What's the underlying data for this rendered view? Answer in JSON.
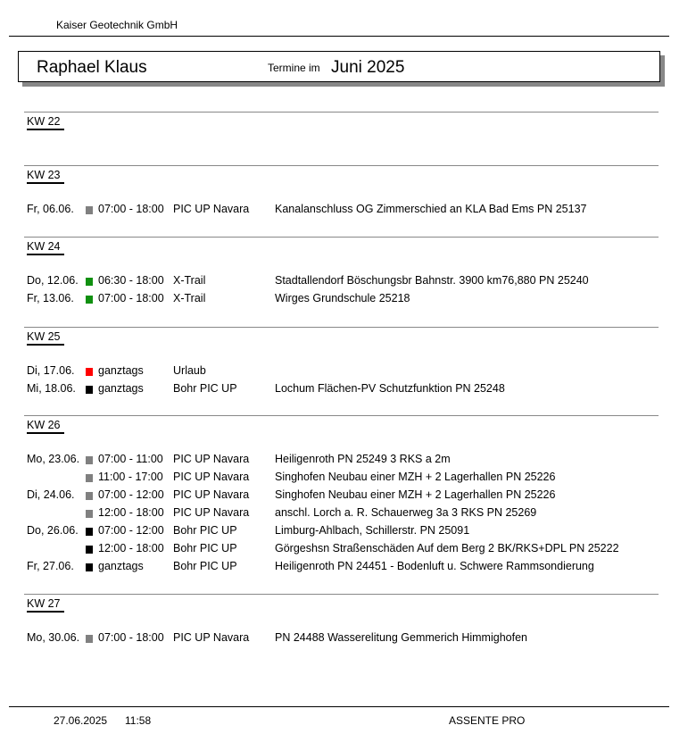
{
  "header": {
    "company": "Kaiser Geotechnik GmbH",
    "name": "Raphael Klaus",
    "termine_label": "Termine im",
    "month": "Juni 2025"
  },
  "colors": {
    "gray": "#808080",
    "green": "#109010",
    "red": "#ff0000",
    "black": "#000000"
  },
  "weeks": [
    {
      "label": "KW 22",
      "rows": []
    },
    {
      "label": "KW 23",
      "rows": [
        {
          "day": "Fr,  06.06.",
          "color": "gray",
          "time": "07:00 - 18:00",
          "vehicle": "PIC UP Navara",
          "desc": "Kanalanschluss OG Zimmerschied an KLA Bad Ems PN 25137"
        }
      ]
    },
    {
      "label": "KW 24",
      "rows": [
        {
          "day": "Do, 12.06.",
          "color": "green",
          "time": "06:30 - 18:00",
          "vehicle": "X-Trail",
          "desc": "Stadtallendorf Böschungsbr Bahnstr. 3900 km76,880 PN 25240"
        },
        {
          "day": "Fr,  13.06.",
          "color": "green",
          "time": "07:00 - 18:00",
          "vehicle": "X-Trail",
          "desc": "Wirges  Grundschule 25218"
        }
      ]
    },
    {
      "label": "KW 25",
      "rows": [
        {
          "day": "Di,  17.06.",
          "color": "red",
          "time": "ganztags",
          "vehicle": "Urlaub",
          "desc": ""
        },
        {
          "day": "Mi,  18.06.",
          "color": "black",
          "time": "ganztags",
          "vehicle": "Bohr PIC UP",
          "desc": "Lochum Flächen-PV Schutzfunktion PN 25248"
        }
      ]
    },
    {
      "label": "KW 26",
      "rows": [
        {
          "day": "Mo, 23.06.",
          "color": "gray",
          "time": "07:00 - 11:00",
          "vehicle": "PIC UP Navara",
          "desc": "Heiligenroth PN 25249 3 RKS a 2m"
        },
        {
          "day": "",
          "color": "gray",
          "time": "11:00 - 17:00",
          "vehicle": "PIC UP Navara",
          "desc": "Singhofen Neubau einer MZH + 2 Lagerhallen  PN 25226"
        },
        {
          "day": "Di,  24.06.",
          "color": "gray",
          "time": "07:00 - 12:00",
          "vehicle": "PIC UP Navara",
          "desc": "Singhofen Neubau einer MZH + 2 Lagerhallen  PN 25226"
        },
        {
          "day": "",
          "color": "gray",
          "time": "12:00 - 18:00",
          "vehicle": "PIC UP Navara",
          "desc": "anschl. Lorch a. R. Schauerweg 3a 3 RKS PN 25269"
        },
        {
          "day": "Do, 26.06.",
          "color": "black",
          "time": "07:00 - 12:00",
          "vehicle": "Bohr PIC UP",
          "desc": "Limburg-Ahlbach, Schillerstr. PN 25091"
        },
        {
          "day": "",
          "color": "black",
          "time": "12:00 - 18:00",
          "vehicle": "Bohr PIC UP",
          "desc": "Görgeshsn Straßenschäden Auf dem Berg 2 BK/RKS+DPL PN 25222"
        },
        {
          "day": "Fr,  27.06.",
          "color": "black",
          "time": "ganztags",
          "vehicle": "Bohr PIC UP",
          "desc": "Heiligenroth PN 24451 - Bodenluft u. Schwere Rammsondierung"
        }
      ]
    },
    {
      "label": "KW 27",
      "rows": [
        {
          "day": "Mo, 30.06.",
          "color": "gray",
          "time": "07:00 - 18:00",
          "vehicle": "PIC UP Navara",
          "desc": "PN 24488 Wasserelitung Gemmerich Himmighofen"
        }
      ]
    }
  ],
  "footer": {
    "date": "27.06.2025",
    "time": "11:58",
    "app": "ASSENTE PRO"
  }
}
